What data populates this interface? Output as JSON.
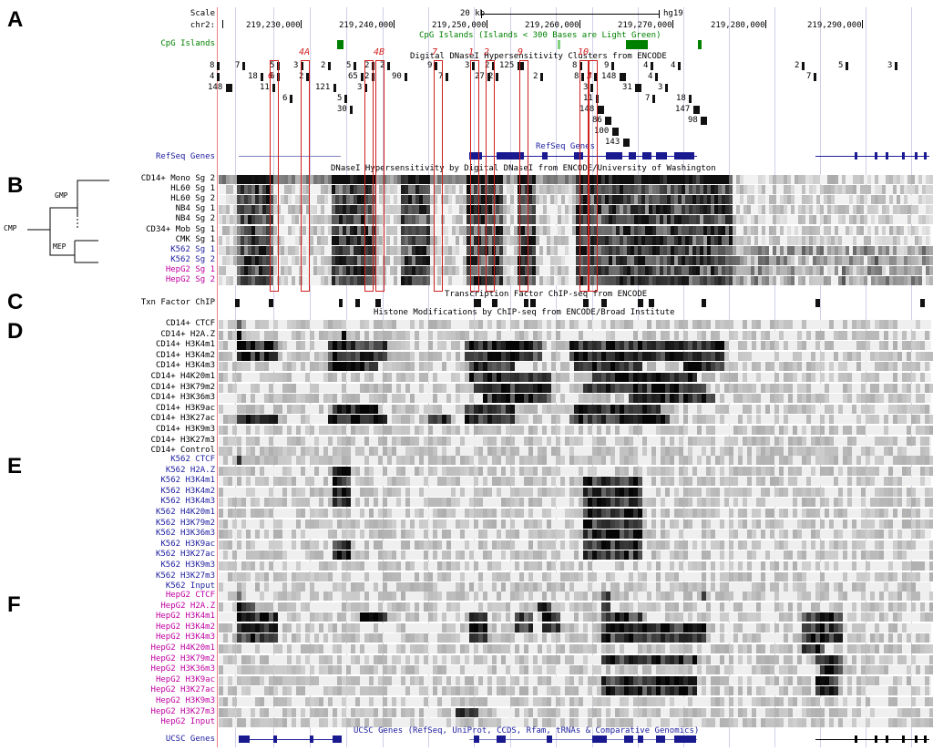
{
  "panel_letters": [
    "A",
    "B",
    "C",
    "D",
    "E",
    "F"
  ],
  "scale": {
    "label": "Scale",
    "bar_text": "20 kb",
    "assembly": "hg19",
    "chrom": "chr2:",
    "ticks": [
      "219,230,000",
      "219,240,000",
      "219,250,000",
      "219,260,000",
      "219,270,000",
      "219,280,000",
      "219,290,000"
    ]
  },
  "cpg": {
    "label": "CpG Islands",
    "title": "CpG Islands (Islands < 300 Bases are Light Green)"
  },
  "dnase_clusters": {
    "title": "Digital DNaseI Hypersensitivity Clusters from ENCODE",
    "row1": [
      "8",
      "7",
      "5",
      "3",
      "2",
      "5",
      "2",
      "2",
      "9",
      "3",
      "2",
      "125",
      "8",
      "9",
      "4",
      "4",
      "2",
      "5",
      "3"
    ],
    "row2": [
      "4",
      "18",
      "6",
      "2",
      "65",
      "2",
      "90",
      "7",
      "27",
      "2",
      "2",
      "8",
      "3",
      "148",
      "4",
      "7"
    ],
    "row3": [
      "148",
      "11",
      "121",
      "3",
      "3",
      "31",
      "3"
    ],
    "row4": [
      "6",
      "5",
      "11",
      "7",
      "18"
    ],
    "row5": [
      "30",
      "148",
      "147"
    ],
    "row6": [
      "86",
      "98"
    ],
    "row7": [
      "100"
    ],
    "row8": [
      "143"
    ]
  },
  "red_regions": [
    "4A",
    "6",
    "4B",
    "7",
    "1",
    "2",
    "9",
    "10",
    "3"
  ],
  "refseq": {
    "label": "RefSeq Genes",
    "title": "RefSeq Genes"
  },
  "dnase_track": {
    "title": "DNaseI Hypersensitivity by Digital DNaseI from ENCODE/University of Washington",
    "labels": [
      "CD14+ Mono Sg 2",
      "HL60 Sg 1",
      "HL60 Sg 2",
      "NB4 Sg 1",
      "NB4 Sg 2",
      "CD34+ Mob Sg 1",
      "CMK Sg 1",
      "K562 Sg 1",
      "K562 Sg 2",
      "HepG2 Sg 1",
      "HepG2 Sg 2"
    ]
  },
  "tree": {
    "gmp": "GMP",
    "cmp": "CMP",
    "mep": "MEP"
  },
  "tfchip": {
    "label": "Txn Factor ChIP",
    "title": "Transcription Factor ChIP-seq from ENCODE"
  },
  "histone_title": "Histone Modifications by ChIP-seq from ENCODE/Broad Institute",
  "cd14_tracks": [
    "CD14+ CTCF",
    "CD14+ H2A.Z",
    "CD14+ H3K4m1",
    "CD14+ H3K4m2",
    "CD14+ H3K4m3",
    "CD14+ H4K20m1",
    "CD14+ H3K79m2",
    "CD14+ H3K36m3",
    "CD14+ H3K9ac",
    "CD14+ H3K27ac",
    "CD14+ H3K9m3",
    "CD14+ H3K27m3",
    "CD14+ Control"
  ],
  "k562_tracks": [
    "K562 CTCF",
    "K562 H2A.Z",
    "K562 H3K4m1",
    "K562 H3K4m2",
    "K562 H3K4m3",
    "K562 H4K20m1",
    "K562 H3K79m2",
    "K562 H3K36m3",
    "K562 H3K9ac",
    "K562 H3K27ac",
    "K562 H3K9m3",
    "K562 H3K27m3",
    "K562 Input"
  ],
  "hepg2_tracks": [
    "HepG2 CTCF",
    "HepG2 H2A.Z",
    "HepG2 H3K4m1",
    "HepG2 H3K4m2",
    "HepG2 H3K4m3",
    "HepG2 H4K20m1",
    "HepG2 H3K79m2",
    "HepG2 H3K36m3",
    "HepG2 H3K9ac",
    "HepG2 H3K27ac",
    "HepG2 H3K9m3",
    "HepG2 H3K27m3",
    "HepG2 Input"
  ],
  "ucsc": {
    "label": "UCSC Genes",
    "title": "UCSC Genes (RefSeq, UniProt, CCDS, Rfam, tRNAs & Comparative Genomics)"
  }
}
